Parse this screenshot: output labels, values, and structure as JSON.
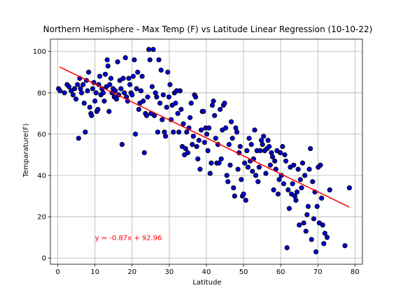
{
  "colors": {
    "point_fill": "#0000cc",
    "point_edge": "#000000",
    "regression": "#ff0000",
    "grid": "#b0b0b0",
    "annotation": "#ff0000"
  },
  "chart_data": {
    "type": "scatter",
    "title": "Northern Hemisphere - Max Temp (F) vs Latitude Linear Regression (10-10-22)",
    "xlabel": "Latitude",
    "ylabel": "Temparature(F)",
    "xlim": [
      -2,
      82
    ],
    "ylim": [
      -3,
      106
    ],
    "xticks": [
      0,
      10,
      20,
      30,
      40,
      50,
      60,
      70,
      80
    ],
    "yticks": [
      0,
      20,
      40,
      60,
      80,
      100
    ],
    "grid": true,
    "regression": {
      "slope": -0.87,
      "intercept": 92.96,
      "x_range": [
        0.5,
        78.5
      ],
      "equation_label": "y = -0.87x + 92.96",
      "label_position_data": [
        10,
        10
      ]
    },
    "series": [
      {
        "points": [
          [
            0.2,
            82
          ],
          [
            0.6,
            81
          ],
          [
            1.8,
            80
          ],
          [
            2.5,
            84
          ],
          [
            3,
            83
          ],
          [
            3.6,
            81
          ],
          [
            4.1,
            79
          ],
          [
            4.5,
            82
          ],
          [
            4.9,
            77
          ],
          [
            5.3,
            84
          ],
          [
            5.6,
            58
          ],
          [
            5.9,
            87
          ],
          [
            6.1,
            82
          ],
          [
            6.4,
            80
          ],
          [
            6.8,
            84
          ],
          [
            7.1,
            75
          ],
          [
            7.4,
            61
          ],
          [
            7.7,
            86
          ],
          [
            8,
            81
          ],
          [
            8.3,
            90
          ],
          [
            8.6,
            73
          ],
          [
            8.9,
            70
          ],
          [
            9.1,
            69
          ],
          [
            9.4,
            82
          ],
          [
            9.7,
            85
          ],
          [
            10,
            76
          ],
          [
            10.3,
            80
          ],
          [
            10.5,
            71
          ],
          [
            10.8,
            72
          ],
          [
            11,
            84
          ],
          [
            11.3,
            88
          ],
          [
            11.6,
            79
          ],
          [
            11.9,
            82
          ],
          [
            12.2,
            80
          ],
          [
            12.5,
            76
          ],
          [
            12.8,
            89
          ],
          [
            13.1,
            83
          ],
          [
            13.3,
            96
          ],
          [
            13.5,
            93
          ],
          [
            13.8,
            71
          ],
          [
            14,
            84
          ],
          [
            14.3,
            87
          ],
          [
            14.6,
            80
          ],
          [
            14.9,
            82
          ],
          [
            15.2,
            78
          ],
          [
            15.5,
            81
          ],
          [
            15.8,
            77
          ],
          [
            16.1,
            95
          ],
          [
            16.4,
            79
          ],
          [
            16.7,
            86
          ],
          [
            17,
            82
          ],
          [
            17.3,
            55
          ],
          [
            17.6,
            87
          ],
          [
            17.9,
            80
          ],
          [
            18.2,
            97
          ],
          [
            18.5,
            78
          ],
          [
            18.8,
            76
          ],
          [
            19.1,
            87
          ],
          [
            19.4,
            84
          ],
          [
            19.7,
            80
          ],
          [
            20,
            79
          ],
          [
            20.3,
            88
          ],
          [
            20.6,
            96
          ],
          [
            20.9,
            60
          ],
          [
            21.2,
            82
          ],
          [
            21.5,
            90
          ],
          [
            21.8,
            72
          ],
          [
            22.1,
            75
          ],
          [
            22.4,
            81
          ],
          [
            22.7,
            88
          ],
          [
            23,
            76
          ],
          [
            23.3,
            51
          ],
          [
            23.6,
            70
          ],
          [
            23.9,
            69
          ],
          [
            24.2,
            78
          ],
          [
            24.5,
            101
          ],
          [
            24.8,
            96
          ],
          [
            25.1,
            70
          ],
          [
            25.4,
            83
          ],
          [
            25.7,
            101
          ],
          [
            26,
            69
          ],
          [
            26.3,
            80
          ],
          [
            26.6,
            78
          ],
          [
            26.9,
            61
          ],
          [
            27.2,
            96
          ],
          [
            27.5,
            75
          ],
          [
            27.8,
            91
          ],
          [
            28.1,
            67
          ],
          [
            28.4,
            79
          ],
          [
            28.7,
            61
          ],
          [
            29,
            59
          ],
          [
            29.3,
            73
          ],
          [
            29.6,
            90
          ],
          [
            29.9,
            78
          ],
          [
            30.2,
            84
          ],
          [
            30.5,
            67
          ],
          [
            30.8,
            74
          ],
          [
            31.1,
            61
          ],
          [
            31.4,
            80
          ],
          [
            31.7,
            75
          ],
          [
            32,
            81
          ],
          [
            32.3,
            70
          ],
          [
            32.6,
            61
          ],
          [
            32.9,
            81
          ],
          [
            33.2,
            72
          ],
          [
            33.5,
            54
          ],
          [
            33.8,
            65
          ],
          [
            34.1,
            50
          ],
          [
            34.4,
            53
          ],
          [
            34.7,
            61
          ],
          [
            35,
            51
          ],
          [
            35.3,
            63
          ],
          [
            35.6,
            68
          ],
          [
            35.9,
            75
          ],
          [
            36.2,
            55
          ],
          [
            36.5,
            59
          ],
          [
            36.8,
            79
          ],
          [
            37.1,
            78
          ],
          [
            37.4,
            54
          ],
          [
            37.7,
            48
          ],
          [
            38,
            57
          ],
          [
            38.3,
            43
          ],
          [
            38.6,
            62
          ],
          [
            38.9,
            71
          ],
          [
            39.2,
            71
          ],
          [
            39.5,
            56
          ],
          [
            39.8,
            63
          ],
          [
            40.1,
            60
          ],
          [
            40.4,
            52
          ],
          [
            40.7,
            63
          ],
          [
            41,
            41
          ],
          [
            41.3,
            46
          ],
          [
            41.6,
            74
          ],
          [
            41.9,
            76
          ],
          [
            42.2,
            69
          ],
          [
            42.5,
            58
          ],
          [
            42.8,
            46
          ],
          [
            43.1,
            55
          ],
          [
            43.4,
            46
          ],
          [
            43.7,
            72
          ],
          [
            44,
            48
          ],
          [
            44.3,
            62
          ],
          [
            44.6,
            74
          ],
          [
            44.9,
            75
          ],
          [
            45.2,
            63
          ],
          [
            45.5,
            40
          ],
          [
            45.8,
            37
          ],
          [
            46.1,
            55
          ],
          [
            46.4,
            45
          ],
          [
            46.7,
            66
          ],
          [
            47,
            58
          ],
          [
            47.3,
            34
          ],
          [
            47.6,
            30
          ],
          [
            47.9,
            63
          ],
          [
            48.2,
            61
          ],
          [
            48.5,
            43
          ],
          [
            48.8,
            51
          ],
          [
            49.1,
            54
          ],
          [
            49.4,
            38
          ],
          [
            49.7,
            30
          ],
          [
            50,
            31
          ],
          [
            50.3,
            46
          ],
          [
            50.6,
            28
          ],
          [
            50.9,
            52
          ],
          [
            51.2,
            44
          ],
          [
            51.5,
            58
          ],
          [
            51.8,
            47
          ],
          [
            52.1,
            55
          ],
          [
            52.4,
            42
          ],
          [
            52.7,
            48
          ],
          [
            53,
            62
          ],
          [
            53.3,
            40
          ],
          [
            53.6,
            52
          ],
          [
            53.9,
            37
          ],
          [
            54.2,
            44
          ],
          [
            54.5,
            52
          ],
          [
            54.8,
            57
          ],
          [
            55.1,
            55
          ],
          [
            55.4,
            59
          ],
          [
            55.7,
            52
          ],
          [
            56,
            41
          ],
          [
            56.3,
            53
          ],
          [
            56.6,
            57
          ],
          [
            56.9,
            54
          ],
          [
            57.2,
            45
          ],
          [
            57.5,
            51
          ],
          [
            57.8,
            49
          ],
          [
            58.1,
            33
          ],
          [
            58.4,
            47
          ],
          [
            58.7,
            43
          ],
          [
            59,
            52
          ],
          [
            59.3,
            31
          ],
          [
            59.6,
            38
          ],
          [
            59.9,
            51
          ],
          [
            60.2,
            40
          ],
          [
            60.5,
            54
          ],
          [
            60.8,
            36
          ],
          [
            61.1,
            50
          ],
          [
            61.4,
            47
          ],
          [
            61.7,
            5
          ],
          [
            62,
            33
          ],
          [
            62.3,
            24
          ],
          [
            62.6,
            44
          ],
          [
            62.9,
            31
          ],
          [
            63.2,
            36
          ],
          [
            63.5,
            45
          ],
          [
            63.8,
            30
          ],
          [
            64.1,
            28
          ],
          [
            64.4,
            32
          ],
          [
            64.7,
            43
          ],
          [
            65,
            16
          ],
          [
            65.3,
            38
          ],
          [
            65.6,
            34
          ],
          [
            65.9,
            46
          ],
          [
            66.2,
            17
          ],
          [
            66.5,
            40
          ],
          [
            66.8,
            13
          ],
          [
            67.1,
            21
          ],
          [
            67.4,
            25
          ],
          [
            67.7,
            43
          ],
          [
            68,
            53
          ],
          [
            68.3,
            9
          ],
          [
            68.6,
            37
          ],
          [
            68.9,
            19
          ],
          [
            69.2,
            32
          ],
          [
            69.5,
            3
          ],
          [
            69.8,
            25
          ],
          [
            70.1,
            44
          ],
          [
            70.4,
            17
          ],
          [
            70.7,
            45
          ],
          [
            71,
            29
          ],
          [
            71.3,
            16
          ],
          [
            71.6,
            7
          ],
          [
            71.9,
            12
          ],
          [
            72.5,
            10
          ],
          [
            73.2,
            33
          ],
          [
            77.3,
            6
          ],
          [
            78.5,
            34
          ]
        ]
      }
    ]
  }
}
